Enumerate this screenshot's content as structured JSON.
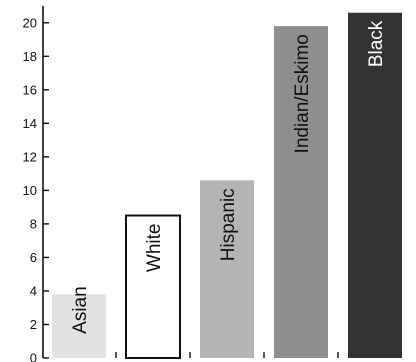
{
  "chart_data": {
    "type": "bar",
    "title": "",
    "xlabel": "",
    "ylabel": "",
    "categories": [
      "Asian",
      "White",
      "Hispanic",
      "Indian/Eskimo",
      "Black"
    ],
    "values": [
      3.8,
      8.5,
      10.6,
      19.8,
      20.6
    ],
    "ylim": [
      0,
      21
    ],
    "yticks": [
      0,
      2,
      4,
      6,
      8,
      10,
      12,
      14,
      16,
      18,
      20
    ],
    "grid": false,
    "legend": "none",
    "bar_fill_colors": [
      "#e2e2e2",
      "#ffffff",
      "#b4b4b4",
      "#8e8e8e",
      "#333333"
    ],
    "bar_label_colors": [
      "#111111",
      "#111111",
      "#111111",
      "#111111",
      "#ffffff"
    ]
  }
}
